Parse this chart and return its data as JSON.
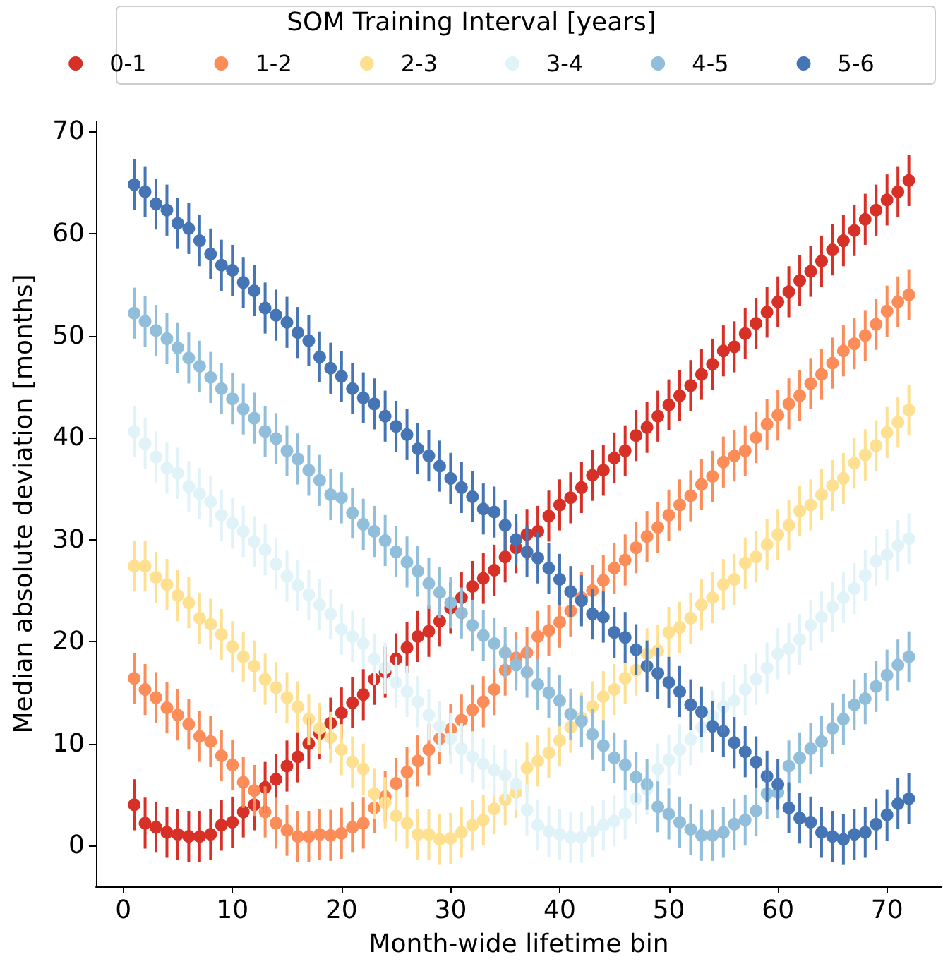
{
  "chart_data": {
    "type": "scatter",
    "xlabel": "Month-wide lifetime bin",
    "ylabel": "Median absolute deviation [months]",
    "legend_title": "SOM Training Interval [years]",
    "legend": "top",
    "grid": false,
    "marker": "circle",
    "xlim": [
      -2.5,
      75
    ],
    "xticks": [
      0,
      10,
      20,
      30,
      40,
      50,
      60,
      70
    ],
    "ylim": [
      -4,
      71
    ],
    "yticks": [
      0,
      10,
      20,
      30,
      40,
      50,
      60,
      70
    ],
    "x": [
      1,
      2,
      3,
      4,
      5,
      6,
      7,
      8,
      9,
      10,
      11,
      12,
      13,
      14,
      15,
      16,
      17,
      18,
      19,
      20,
      21,
      22,
      23,
      24,
      25,
      26,
      27,
      28,
      29,
      30,
      31,
      32,
      33,
      34,
      35,
      36,
      37,
      38,
      39,
      40,
      41,
      42,
      43,
      44,
      45,
      46,
      47,
      48,
      49,
      50,
      51,
      52,
      53,
      54,
      55,
      56,
      57,
      58,
      59,
      60,
      61,
      62,
      63,
      64,
      65,
      66,
      67,
      68,
      69,
      70,
      71,
      72
    ],
    "series": [
      {
        "name": "0-1",
        "color": "#d73027",
        "values": [
          4,
          2.2,
          1.8,
          1.3,
          1.1,
          0.9,
          0.9,
          1.1,
          2,
          2.3,
          3.3,
          4,
          5.7,
          6.5,
          7.8,
          8.7,
          10,
          11,
          12,
          13,
          14,
          14.8,
          16.3,
          17,
          18.3,
          19.4,
          20.5,
          21,
          22,
          23.3,
          24.3,
          25.4,
          26.2,
          27,
          28.3,
          29.2,
          30.5,
          30.8,
          32.3,
          33.4,
          34.1,
          35.1,
          36.3,
          36.8,
          38,
          38.7,
          40.2,
          41,
          42.1,
          43.2,
          44.1,
          45.1,
          46.2,
          47.2,
          48.5,
          48.9,
          50.2,
          51.2,
          52.3,
          53.3,
          54.3,
          55.4,
          56.3,
          57.3,
          58.4,
          59.3,
          60.3,
          61.4,
          62.3,
          63.3,
          64.1,
          65.2
        ],
        "errors": [
          2.5,
          2.5,
          2.5,
          2.5,
          2.5,
          2.5,
          2.5,
          2.5,
          2.5,
          2.5,
          2.5,
          2.5,
          2.5,
          2.5,
          2.5,
          2.5,
          2.5,
          2.5,
          2.5,
          2.5,
          2.5,
          2.5,
          2.5,
          2.5,
          2.5,
          2.5,
          2.5,
          2.5,
          2.5,
          2.5,
          2.5,
          2.5,
          2.5,
          2.5,
          2.5,
          2.5,
          2.5,
          2.5,
          2.5,
          2.5,
          2.5,
          2.5,
          2.5,
          2.5,
          2.5,
          2.5,
          2.5,
          2.5,
          2.5,
          2.5,
          2.5,
          2.5,
          2.5,
          2.5,
          2.5,
          2.5,
          2.5,
          2.5,
          2.5,
          2.5,
          2.5,
          2.5,
          2.5,
          2.5,
          2.5,
          2.5,
          2.5,
          2.5,
          2.5,
          2.5,
          2.5,
          2.5
        ]
      },
      {
        "name": "1-2",
        "color": "#fc8d59",
        "values": [
          16.4,
          15.3,
          14.5,
          13.5,
          12.8,
          11.9,
          10.7,
          10.2,
          8.8,
          7.9,
          6.2,
          5.4,
          3.3,
          2.2,
          1.5,
          0.9,
          0.9,
          1.1,
          1.0,
          1.2,
          1.8,
          2.2,
          3.7,
          4.8,
          6.1,
          7.2,
          8.3,
          9.4,
          10.5,
          11.4,
          12.3,
          13.3,
          14.1,
          15.3,
          17.2,
          18.4,
          18.9,
          20.5,
          21.1,
          21.9,
          23.0,
          24.3,
          25.0,
          26.0,
          27.2,
          28.0,
          29.2,
          30.3,
          31.2,
          32.4,
          33.4,
          34.3,
          35.4,
          36.2,
          37.6,
          38.2,
          38.7,
          40.0,
          41.3,
          42.2,
          43.3,
          44.1,
          45.3,
          46.2,
          47.3,
          48.5,
          49.2,
          50.0,
          51.1,
          52.4,
          53.3,
          54.0
        ],
        "errors": [
          2.5,
          2.5,
          2.5,
          2.5,
          2.5,
          2.5,
          2.5,
          2.5,
          2.5,
          2.5,
          2.5,
          2.5,
          2.5,
          2.5,
          2.5,
          2.5,
          2.5,
          2.5,
          2.5,
          2.5,
          2.5,
          2.5,
          2.5,
          2.5,
          2.5,
          2.5,
          2.5,
          2.5,
          2.5,
          2.5,
          2.5,
          2.5,
          2.5,
          2.5,
          2.5,
          2.5,
          2.5,
          2.5,
          2.5,
          2.5,
          2.5,
          2.5,
          2.5,
          2.5,
          2.5,
          2.5,
          2.5,
          2.5,
          2.5,
          2.5,
          2.5,
          2.5,
          2.5,
          2.5,
          2.5,
          2.5,
          2.5,
          2.5,
          2.5,
          2.5,
          2.5,
          2.5,
          2.5,
          2.5,
          2.5,
          2.5,
          2.5,
          2.5,
          2.5,
          2.5,
          2.5,
          2.5
        ]
      },
      {
        "name": "2-3",
        "color": "#fee090",
        "values": [
          27.4,
          27.4,
          26.3,
          25.6,
          24.5,
          23.8,
          22.3,
          21.7,
          20.7,
          19.5,
          18.5,
          17.6,
          16.3,
          15.5,
          14.5,
          13.6,
          12.4,
          11.5,
          10.6,
          9.4,
          8.2,
          7.5,
          5.1,
          4.2,
          2.9,
          2.2,
          1.1,
          1.1,
          0.6,
          0.7,
          1.3,
          2.0,
          2.5,
          3.6,
          4.5,
          5.2,
          7.6,
          8.3,
          9.1,
          10.3,
          11.6,
          12.5,
          13.6,
          14.6,
          15.3,
          16.4,
          17.2,
          18.8,
          19.1,
          20.9,
          21.4,
          22.3,
          23.6,
          24.3,
          25.6,
          26.1,
          27.7,
          28.3,
          29.5,
          30.5,
          31.4,
          32.8,
          33.4,
          34.4,
          35.3,
          36.0,
          37.5,
          38.3,
          39.2,
          40.5,
          41.5,
          42.7
        ],
        "errors": [
          2.5,
          2.5,
          2.5,
          2.5,
          2.5,
          2.5,
          2.5,
          2.5,
          2.5,
          2.5,
          2.5,
          2.5,
          2.5,
          2.5,
          2.5,
          2.5,
          2.5,
          2.5,
          2.5,
          2.5,
          2.5,
          2.5,
          2.5,
          2.5,
          2.5,
          2.5,
          2.5,
          2.5,
          2.5,
          2.5,
          2.5,
          2.5,
          2.5,
          2.5,
          2.5,
          2.5,
          2.5,
          2.5,
          2.5,
          2.5,
          2.5,
          2.5,
          2.5,
          2.5,
          2.5,
          2.5,
          2.5,
          2.5,
          2.5,
          2.5,
          2.5,
          2.5,
          2.5,
          2.5,
          2.5,
          2.5,
          2.5,
          2.5,
          2.5,
          2.5,
          2.5,
          2.5,
          2.5,
          2.5,
          2.5,
          2.5,
          2.5,
          2.5,
          2.5,
          2.5,
          2.5,
          2.5
        ]
      },
      {
        "name": "3-4",
        "color": "#e0f3f8",
        "values": [
          40.6,
          39.4,
          38.1,
          37,
          36.5,
          35.2,
          34.5,
          33.7,
          32.4,
          31.6,
          30.8,
          29.8,
          29,
          27.6,
          26.4,
          25.5,
          24.6,
          23.6,
          22.7,
          21.2,
          20.5,
          19.8,
          18.3,
          17.4,
          16,
          15.1,
          14.1,
          12.8,
          11.7,
          10.5,
          9.5,
          8.7,
          8.0,
          7.4,
          6.9,
          6.0,
          3.5,
          2.0,
          1.4,
          1.1,
          0.8,
          0.8,
          1.4,
          2.0,
          2.4,
          3.1,
          4.6,
          5.5,
          7.5,
          8.4,
          9.4,
          10.4,
          11.6,
          12.7,
          13.6,
          14.2,
          15.3,
          16.3,
          17.4,
          18.8,
          19.3,
          20.2,
          21.6,
          22.4,
          23.4,
          24.3,
          25.2,
          26.5,
          27.9,
          28.5,
          29.4,
          30.1
        ],
        "errors": [
          2.5,
          2.5,
          2.5,
          2.5,
          2.5,
          2.5,
          2.5,
          2.5,
          2.5,
          2.5,
          2.5,
          2.5,
          2.5,
          2.5,
          2.5,
          2.5,
          2.5,
          2.5,
          2.5,
          2.5,
          2.5,
          2.5,
          2.5,
          2.5,
          2.5,
          2.5,
          2.5,
          2.5,
          2.5,
          2.5,
          2.5,
          2.5,
          2.5,
          2.5,
          2.5,
          2.5,
          2.5,
          2.5,
          2.5,
          2.5,
          2.5,
          2.5,
          2.5,
          2.5,
          2.5,
          2.5,
          2.5,
          2.5,
          2.5,
          2.5,
          2.5,
          2.5,
          2.5,
          2.5,
          2.5,
          2.5,
          2.5,
          2.5,
          2.5,
          2.5,
          2.5,
          2.5,
          2.5,
          2.5,
          2.5,
          2.5,
          2.5,
          2.5,
          2.5,
          2.5,
          2.5,
          2.5
        ]
      },
      {
        "name": "4-5",
        "color": "#91bfdb",
        "values": [
          52.2,
          51.4,
          50.5,
          49.7,
          48.8,
          47.8,
          47.0,
          45.9,
          44.8,
          43.8,
          42.8,
          41.9,
          40.6,
          39.9,
          38.7,
          37.9,
          36.8,
          35.8,
          34.4,
          34.1,
          32.6,
          31.5,
          30.8,
          29.9,
          28.8,
          27.8,
          26.9,
          25.7,
          24.8,
          23.8,
          22.8,
          21.6,
          20.6,
          19.8,
          18.9,
          17.7,
          17.0,
          15.8,
          15.0,
          14.2,
          12.9,
          12.2,
          10.9,
          9.8,
          8.6,
          7.9,
          6.7,
          6.0,
          3.8,
          3.1,
          2.3,
          1.6,
          1.0,
          1.0,
          1.3,
          2.1,
          2.5,
          3.4,
          5.1,
          5.2,
          7.8,
          8.6,
          9.5,
          10.2,
          11.5,
          12.4,
          13.8,
          14.4,
          15.6,
          16.7,
          17.7,
          18.5
        ],
        "errors": [
          2.5,
          2.5,
          2.5,
          2.5,
          2.5,
          2.5,
          2.5,
          2.5,
          2.5,
          2.5,
          2.5,
          2.5,
          2.5,
          2.5,
          2.5,
          2.5,
          2.5,
          2.5,
          2.5,
          2.5,
          2.5,
          2.5,
          2.5,
          2.5,
          2.5,
          2.5,
          2.5,
          2.5,
          2.5,
          2.5,
          2.5,
          2.5,
          2.5,
          2.5,
          2.5,
          2.5,
          2.5,
          2.5,
          2.5,
          2.5,
          2.5,
          2.5,
          2.5,
          2.5,
          2.5,
          2.5,
          2.5,
          2.5,
          2.5,
          2.5,
          2.5,
          2.5,
          2.5,
          2.5,
          2.5,
          2.5,
          2.5,
          2.5,
          2.5,
          2.5,
          2.5,
          2.5,
          2.5,
          2.5,
          2.5,
          2.5,
          2.5,
          2.5,
          2.5,
          2.5,
          2.5,
          2.5
        ]
      },
      {
        "name": "5-6",
        "color": "#4575b4",
        "values": [
          64.8,
          64.1,
          62.9,
          62.3,
          61.0,
          60.5,
          59.3,
          58.0,
          56.9,
          56.4,
          55.2,
          54.4,
          52.7,
          52.0,
          51.3,
          50.3,
          49.5,
          47.9,
          46.8,
          46.0,
          44.8,
          43.9,
          43.3,
          42.1,
          41.1,
          40.3,
          38.9,
          38.2,
          37.2,
          36.0,
          35.1,
          34.2,
          33.0,
          32.7,
          31.4,
          30.0,
          28.8,
          28.2,
          27.2,
          26.1,
          24.9,
          24.0,
          22.7,
          22.4,
          20.9,
          20.4,
          19.2,
          17.6,
          16.9,
          16.0,
          15.1,
          13.8,
          13.1,
          11.7,
          11.2,
          10.1,
          9.2,
          8.2,
          6.8,
          6.0,
          3.7,
          2.7,
          2.3,
          1.3,
          0.9,
          0.6,
          1.1,
          1.3,
          2.1,
          3.0,
          4.1,
          4.6
        ],
        "errors": [
          2.5,
          2.5,
          2.5,
          2.5,
          2.5,
          2.5,
          2.5,
          2.5,
          2.5,
          2.5,
          2.5,
          2.5,
          2.5,
          2.5,
          2.5,
          2.5,
          2.5,
          2.5,
          2.5,
          2.5,
          2.5,
          2.5,
          2.5,
          2.5,
          2.5,
          2.5,
          2.5,
          2.5,
          2.5,
          2.5,
          2.5,
          2.5,
          2.5,
          2.5,
          2.5,
          2.5,
          2.5,
          2.5,
          2.5,
          2.5,
          2.5,
          2.5,
          2.5,
          2.5,
          2.5,
          2.5,
          2.5,
          2.5,
          2.5,
          2.5,
          2.5,
          2.5,
          2.5,
          2.5,
          2.5,
          2.5,
          2.5,
          2.5,
          2.5,
          2.5,
          2.5,
          2.5,
          2.5,
          2.5,
          2.5,
          2.5,
          2.5,
          2.5,
          2.5,
          2.5,
          2.5,
          2.5
        ]
      }
    ]
  }
}
